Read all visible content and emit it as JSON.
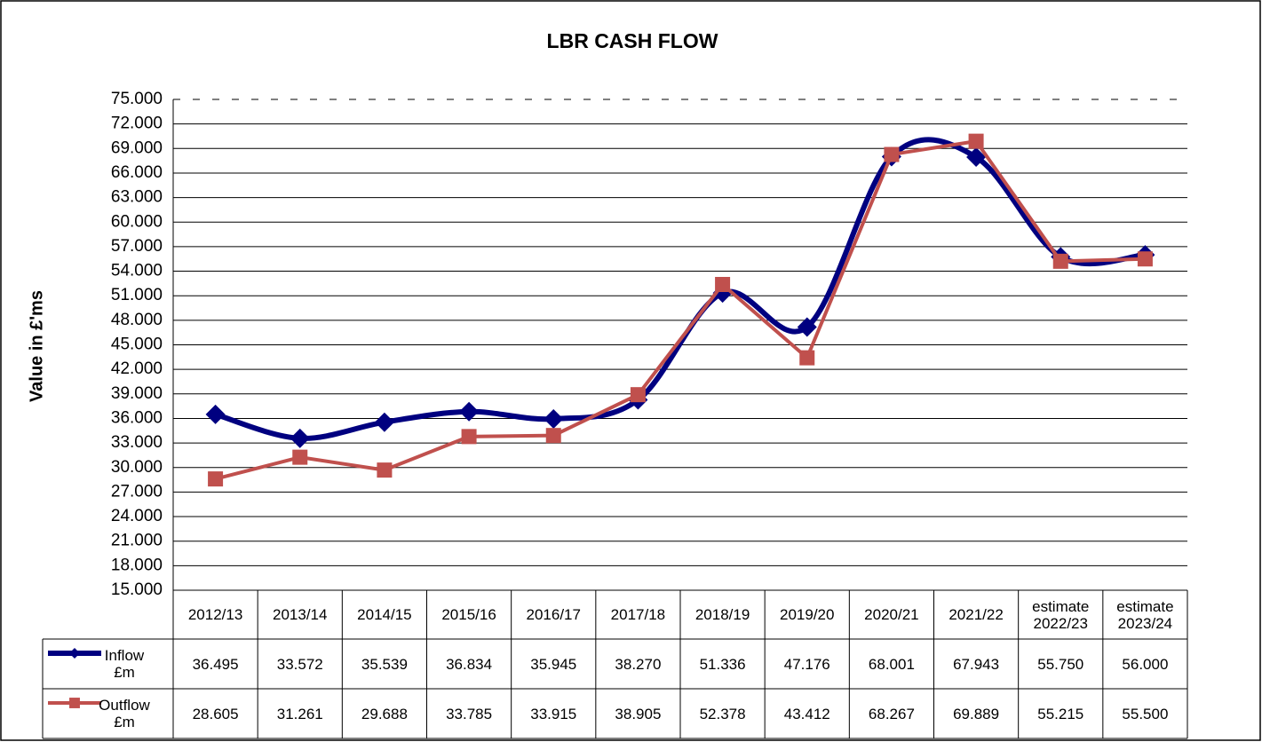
{
  "chart_data": {
    "type": "line",
    "title": "LBR CASH FLOW",
    "y_label": "Value in £'ms",
    "categories": [
      "2012/13",
      "2013/14",
      "2014/15",
      "2015/16",
      "2016/17",
      "2017/18",
      "2018/19",
      "2019/20",
      "2020/21",
      "2021/22",
      "estimate 2022/23",
      "estimate 2023/24"
    ],
    "series": [
      {
        "name": "Inflow £m",
        "color": "#000080",
        "marker": "diamond",
        "smooth": true,
        "values": [
          36.495,
          33.572,
          35.539,
          36.834,
          35.945,
          38.27,
          51.336,
          47.176,
          68.001,
          67.943,
          55.75,
          56.0
        ],
        "value_labels": [
          "36.495",
          "33.572",
          "35.539",
          "36.834",
          "35.945",
          "38.270",
          "51.336",
          "47.176",
          "68.001",
          "67.943",
          "55.750",
          "56.000"
        ]
      },
      {
        "name": "Outflow £m",
        "color": "#c0504d",
        "marker": "square",
        "smooth": false,
        "values": [
          28.605,
          31.261,
          29.688,
          33.785,
          33.915,
          38.905,
          52.378,
          43.412,
          68.267,
          69.889,
          55.215,
          55.5
        ],
        "value_labels": [
          "28.605",
          "31.261",
          "29.688",
          "33.785",
          "33.915",
          "38.905",
          "52.378",
          "43.412",
          "68.267",
          "69.889",
          "55.215",
          "55.500"
        ]
      }
    ],
    "ylim": [
      15,
      75
    ],
    "yticks": [
      {
        "value": 15,
        "label": "15.000"
      },
      {
        "value": 18,
        "label": "18.000"
      },
      {
        "value": 21,
        "label": "21.000"
      },
      {
        "value": 24,
        "label": "24.000"
      },
      {
        "value": 27,
        "label": "27.000"
      },
      {
        "value": 30,
        "label": "30.000"
      },
      {
        "value": 33,
        "label": "33.000"
      },
      {
        "value": 36,
        "label": "36.000"
      },
      {
        "value": 39,
        "label": "39.000"
      },
      {
        "value": 42,
        "label": "42.000"
      },
      {
        "value": 45,
        "label": "45.000"
      },
      {
        "value": 48,
        "label": "48.000"
      },
      {
        "value": 51,
        "label": "51.000"
      },
      {
        "value": 54,
        "label": "54.000"
      },
      {
        "value": 57,
        "label": "57.000"
      },
      {
        "value": 60,
        "label": "60.000"
      },
      {
        "value": 63,
        "label": "63.000"
      },
      {
        "value": 66,
        "label": "66.000"
      },
      {
        "value": 69,
        "label": "69.000"
      },
      {
        "value": 72,
        "label": "72.000"
      },
      {
        "value": 75,
        "label": "75.000"
      }
    ],
    "grid": true
  }
}
